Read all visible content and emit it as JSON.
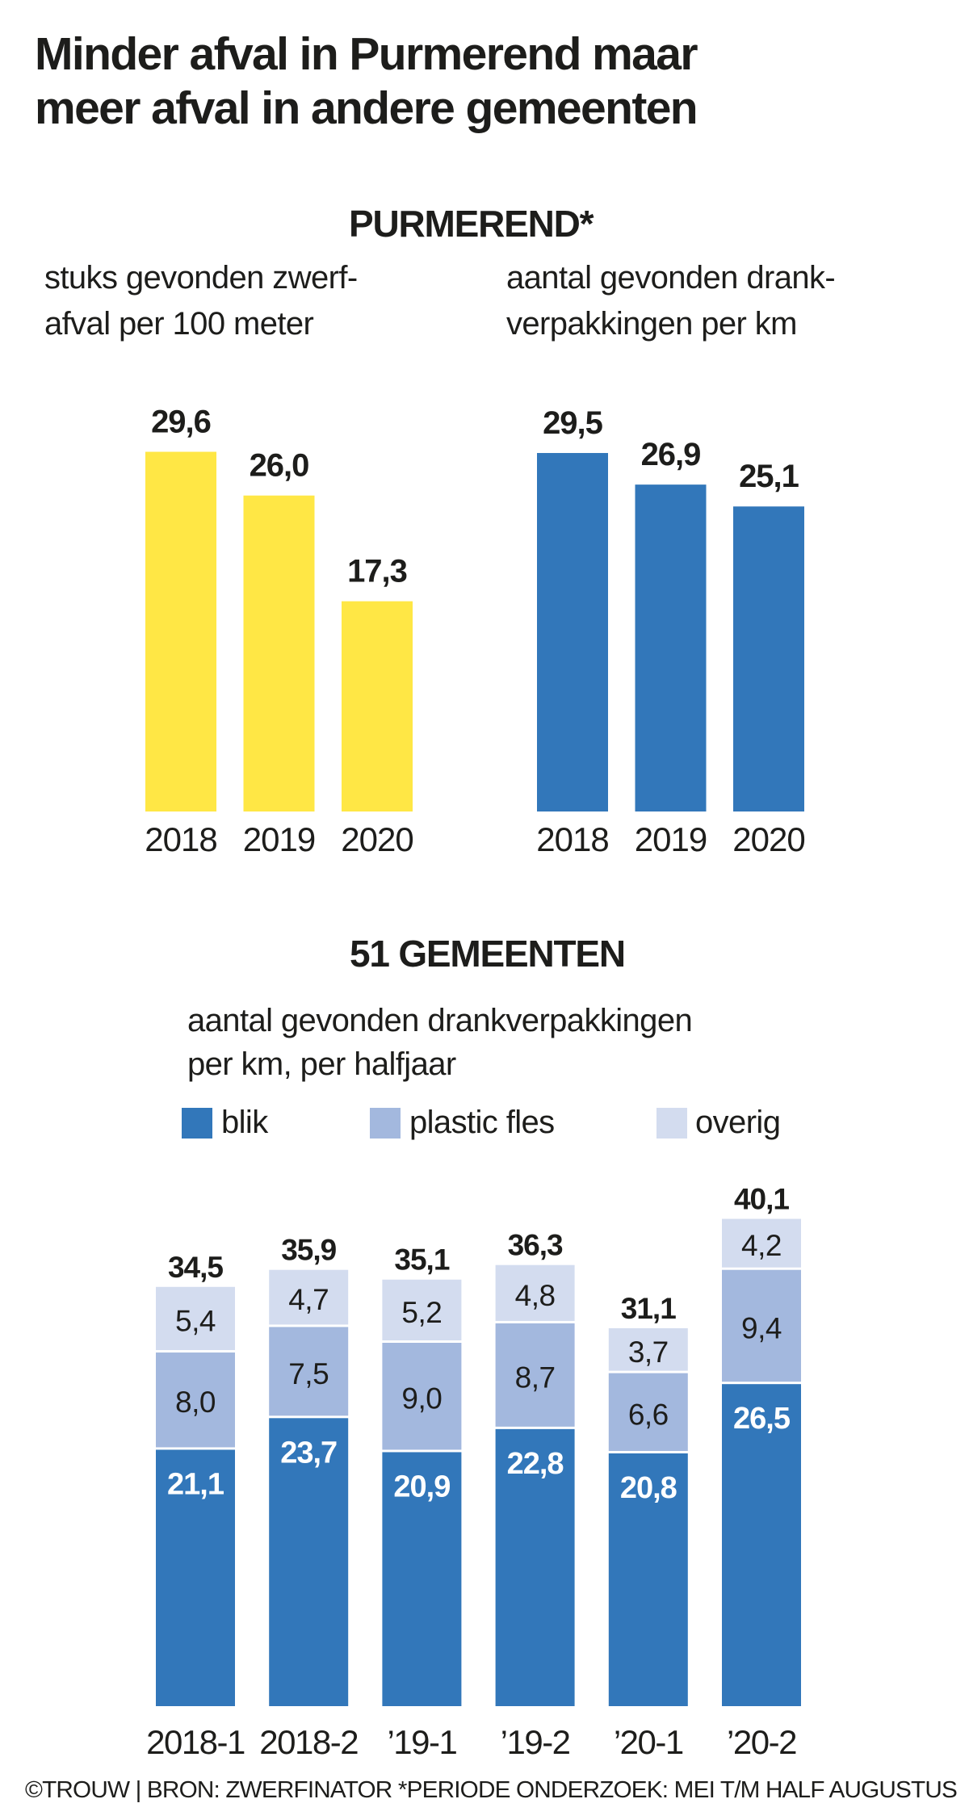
{
  "title": {
    "line1": "Minder afval in Purmerend maar",
    "line2": "meer afval in andere gemeenten"
  },
  "colors": {
    "yellow": "#FFE745",
    "blik": "#3277BA",
    "plastic_fles": "#A3B8DE",
    "overig": "#D3DCEF",
    "text": "#1D1D1B"
  },
  "purmerend": {
    "heading": "PURMEREND*",
    "left_subtitle": [
      "stuks gevonden zwerf-",
      "afval per 100 meter"
    ],
    "right_subtitle": [
      "aantal gevonden drank-",
      "verpakkingen per km"
    ]
  },
  "gemeenten": {
    "heading": "51 GEMEENTEN",
    "subtitle": [
      "aantal gevonden drankverpakkingen",
      "per km, per halfjaar"
    ],
    "legend": [
      {
        "label": "blik",
        "color_key": "blik"
      },
      {
        "label": "plastic fles",
        "color_key": "plastic_fles"
      },
      {
        "label": "overig",
        "color_key": "overig"
      }
    ]
  },
  "footer": "©TROUW | BRON: ZWERFINATOR *PERIODE ONDERZOEK: MEI T/M HALF AUGUSTUS",
  "chart_data": [
    {
      "type": "bar",
      "title": "PURMEREND*",
      "subtitle": "stuks gevonden zwerfafval per 100 meter",
      "categories": [
        "2018",
        "2019",
        "2020"
      ],
      "values": [
        29.6,
        26.0,
        17.3
      ],
      "labels": [
        "29,6",
        "26,0",
        "17,3"
      ],
      "color": "#FFE745",
      "xlabel": "",
      "ylabel": "",
      "grid": false
    },
    {
      "type": "bar",
      "title": "PURMEREND*",
      "subtitle": "aantal gevonden drankverpakkingen per km",
      "categories": [
        "2018",
        "2019",
        "2020"
      ],
      "values": [
        29.5,
        26.9,
        25.1
      ],
      "labels": [
        "29,5",
        "26,9",
        "25,1"
      ],
      "color": "#3277BA",
      "xlabel": "",
      "ylabel": "",
      "grid": false
    },
    {
      "type": "bar",
      "stacked": true,
      "title": "51 GEMEENTEN",
      "subtitle": "aantal gevonden drankverpakkingen per km, per halfjaar",
      "categories": [
        "2018-1",
        "2018-2",
        "’19-1",
        "’19-2",
        "’20-1",
        "’20-2"
      ],
      "series": [
        {
          "name": "blik",
          "values": [
            21.1,
            23.7,
            20.9,
            22.8,
            20.8,
            26.5
          ],
          "labels": [
            "21,1",
            "23,7",
            "20,9",
            "22,8",
            "20,8",
            "26,5"
          ],
          "color": "#3277BA"
        },
        {
          "name": "plastic fles",
          "values": [
            8.0,
            7.5,
            9.0,
            8.7,
            6.6,
            9.4
          ],
          "labels": [
            "8,0",
            "7,5",
            "9,0",
            "8,7",
            "6,6",
            "9,4"
          ],
          "color": "#A3B8DE"
        },
        {
          "name": "overig",
          "values": [
            5.4,
            4.7,
            5.2,
            4.8,
            3.7,
            4.2
          ],
          "labels": [
            "5,4",
            "4,7",
            "5,2",
            "4,8",
            "3,7",
            "4,2"
          ],
          "color": "#D3DCEF"
        }
      ],
      "totals": [
        34.5,
        35.9,
        35.1,
        36.3,
        31.1,
        40.1
      ],
      "total_labels": [
        "34,5",
        "35,9",
        "35,1",
        "36,3",
        "31,1",
        "40,1"
      ],
      "legend": "top-left",
      "xlabel": "",
      "ylabel": "",
      "grid": false
    }
  ]
}
